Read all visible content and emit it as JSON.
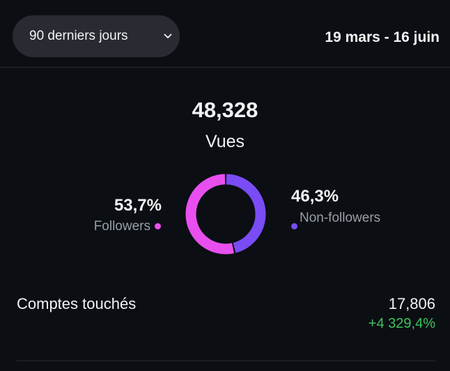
{
  "header": {
    "period_button": "90 derniers jours",
    "date_range": "19 mars - 16 juin"
  },
  "summary": {
    "total": "48,328",
    "total_label": "Vues"
  },
  "donut": {
    "segments": [
      {
        "name": "Followers",
        "value": 53.7,
        "value_label": "53,7%",
        "color": "#e94fef"
      },
      {
        "name": "Non-followers",
        "value": 46.3,
        "value_label": "46,3%",
        "color": "#7a4cf5"
      }
    ]
  },
  "accounts": {
    "label": "Comptes touchés",
    "value": "17,806",
    "change": "+4 329,4%"
  }
}
